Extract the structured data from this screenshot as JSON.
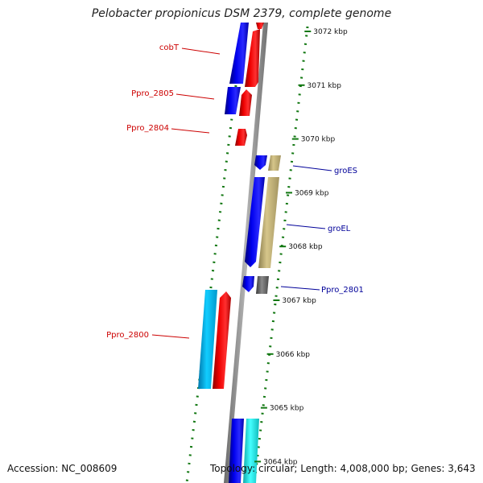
{
  "title": "Pelobacter propionicus DSM 2379, complete genome",
  "footer": {
    "accession": "Accession: NC_008609",
    "topology": "Topology: circular; Length: 4,008,000 bp; Genes: 3,643"
  },
  "ticks": [
    {
      "label": "3072 kbp",
      "pos_kbp": 3072
    },
    {
      "label": "3071 kbp",
      "pos_kbp": 3071
    },
    {
      "label": "3070 kbp",
      "pos_kbp": 3070
    },
    {
      "label": "3069 kbp",
      "pos_kbp": 3069
    },
    {
      "label": "3068 kbp",
      "pos_kbp": 3068
    },
    {
      "label": "3067 kbp",
      "pos_kbp": 3067
    },
    {
      "label": "3066 kbp",
      "pos_kbp": 3066
    },
    {
      "label": "3065 kbp",
      "pos_kbp": 3065
    },
    {
      "label": "3064 kbp",
      "pos_kbp": 3064
    }
  ],
  "labels_left": [
    {
      "text": "cobT",
      "color": "#cc0000"
    },
    {
      "text": "Ppro_2805",
      "color": "#cc0000"
    },
    {
      "text": "Ppro_2804",
      "color": "#cc0000"
    },
    {
      "text": "Ppro_2800",
      "color": "#cc0000"
    }
  ],
  "labels_right": [
    {
      "text": "groES",
      "color": "#000099"
    },
    {
      "text": "groEL",
      "color": "#000099"
    },
    {
      "text": "Ppro_2801",
      "color": "#000099"
    }
  ],
  "colors": {
    "backbone": "#8a8a8a",
    "cog_blue": "#0000ee",
    "cog_red": "#ee0000",
    "cog_khaki": "#c8b878",
    "cog_gray": "#6e6e6e",
    "cog_cyan": "#00bbee",
    "cog_aqua": "#22eeee",
    "gc_dots": "#117711"
  }
}
